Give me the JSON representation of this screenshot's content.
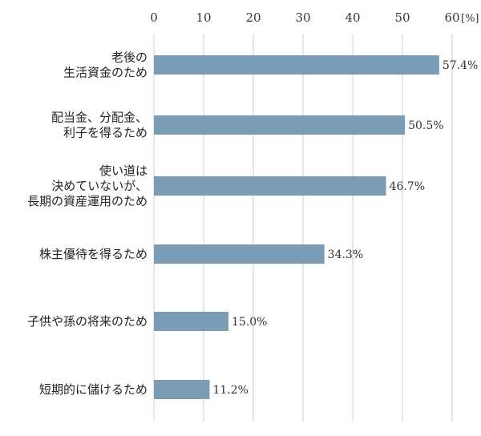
{
  "chart_data": {
    "type": "bar",
    "orientation": "horizontal",
    "categories": [
      [
        "老後の",
        "生活資金のため"
      ],
      [
        "配当金、分配金、",
        "利子を得るため"
      ],
      [
        "使い道は",
        "決めていないが、",
        "長期の資産運用のため"
      ],
      [
        "株主優待を得るため"
      ],
      [
        "子供や孫の将来のため"
      ],
      [
        "短期的に儲けるため"
      ]
    ],
    "values": [
      57.4,
      50.5,
      46.7,
      34.3,
      15.0,
      11.2
    ],
    "value_labels": [
      "57.4%",
      "50.5%",
      "46.7%",
      "34.3%",
      "15.0%",
      "11.2%"
    ],
    "xlim": [
      0,
      60
    ],
    "x_ticks": [
      0,
      10,
      20,
      30,
      40,
      50,
      60
    ],
    "tick_labels": [
      "0",
      "10",
      "20",
      "30",
      "40",
      "50",
      "60"
    ],
    "x_unit": "[%]",
    "x_axis_position": "top",
    "grid": true,
    "bar_color": "#7a9db5",
    "grid_color": "#cccccc"
  }
}
